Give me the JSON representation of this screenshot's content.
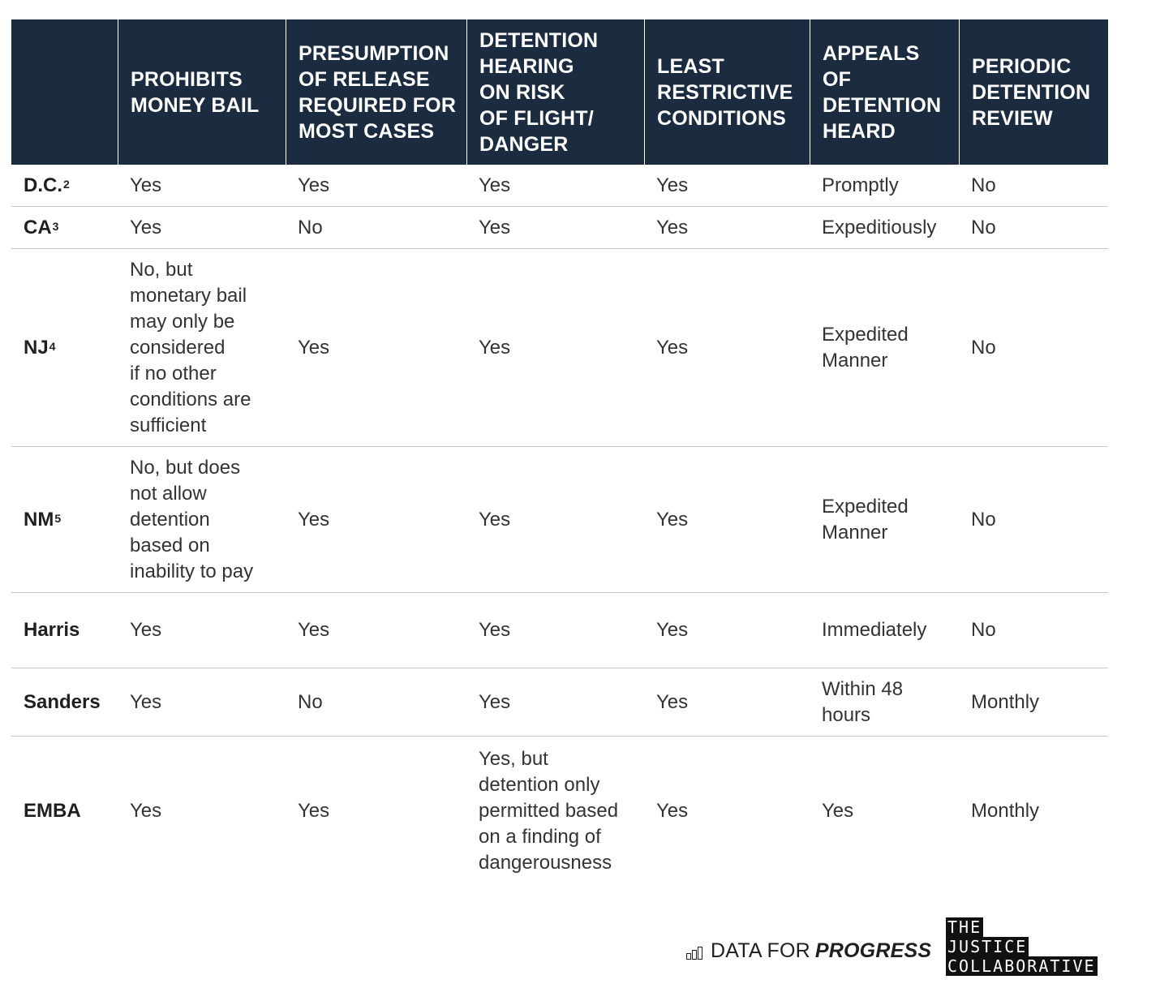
{
  "chart_data": {
    "type": "table",
    "columns": [
      "",
      "PROHIBITS\nMONEY BAIL",
      "PRESUMPTION\nOF RELEASE\nREQUIRED FOR\nMOST CASES",
      "DETENTION\nHEARING\nON RISK\nOF FLIGHT/\nDANGER",
      "LEAST\nRESTRICTIVE\nCONDITIONS",
      "APPEALS\nOF\nDETENTION\nHEARD",
      "PERIODIC\nDETENTION\nREVIEW"
    ],
    "rows": [
      {
        "label": "D.C.",
        "sup": "2",
        "cells": [
          "Yes",
          "Yes",
          "Yes",
          "Yes",
          "Promptly",
          "No"
        ]
      },
      {
        "label": "CA",
        "sup": "3",
        "cells": [
          "Yes",
          "No",
          "Yes",
          "Yes",
          "Expeditiously",
          "No"
        ]
      },
      {
        "label": "NJ",
        "sup": "4",
        "cells": [
          "No, but\nmonetary bail\nmay only be\nconsidered\nif no other\nconditions are\nsufficient",
          "Yes",
          "Yes",
          "Yes",
          "Expedited\nManner",
          "No"
        ]
      },
      {
        "label": "NM",
        "sup": "5",
        "cells": [
          "No, but does\nnot allow\ndetention\nbased on\ninability to pay",
          "Yes",
          "Yes",
          "Yes",
          "Expedited\nManner",
          "No"
        ]
      },
      {
        "label": "Harris",
        "sup": "",
        "cells": [
          "Yes",
          "Yes",
          "Yes",
          "Yes",
          "Immediately",
          "No"
        ]
      },
      {
        "label": "Sanders",
        "sup": "",
        "cells": [
          "Yes",
          "No",
          "Yes",
          "Yes",
          "Within 48\nhours",
          "Monthly"
        ]
      },
      {
        "label": "EMBA",
        "sup": "",
        "cells": [
          "Yes",
          "Yes",
          "Yes, but\ndetention only\npermitted based\non a finding of\ndangerousness",
          "Yes",
          "Yes",
          "Monthly"
        ]
      }
    ]
  },
  "footer": {
    "dfp_plain": "DATA FOR",
    "dfp_bold": "PROGRESS",
    "tjc_lines": [
      "THE",
      "JUSTICE",
      "COLLABORATIVE"
    ]
  },
  "colors": {
    "header_bg": "#1b2b40",
    "header_text": "#ffffff",
    "row_divider": "#c9c9c9"
  },
  "icons": {
    "dfp_logo": "bar-chart-icon"
  }
}
